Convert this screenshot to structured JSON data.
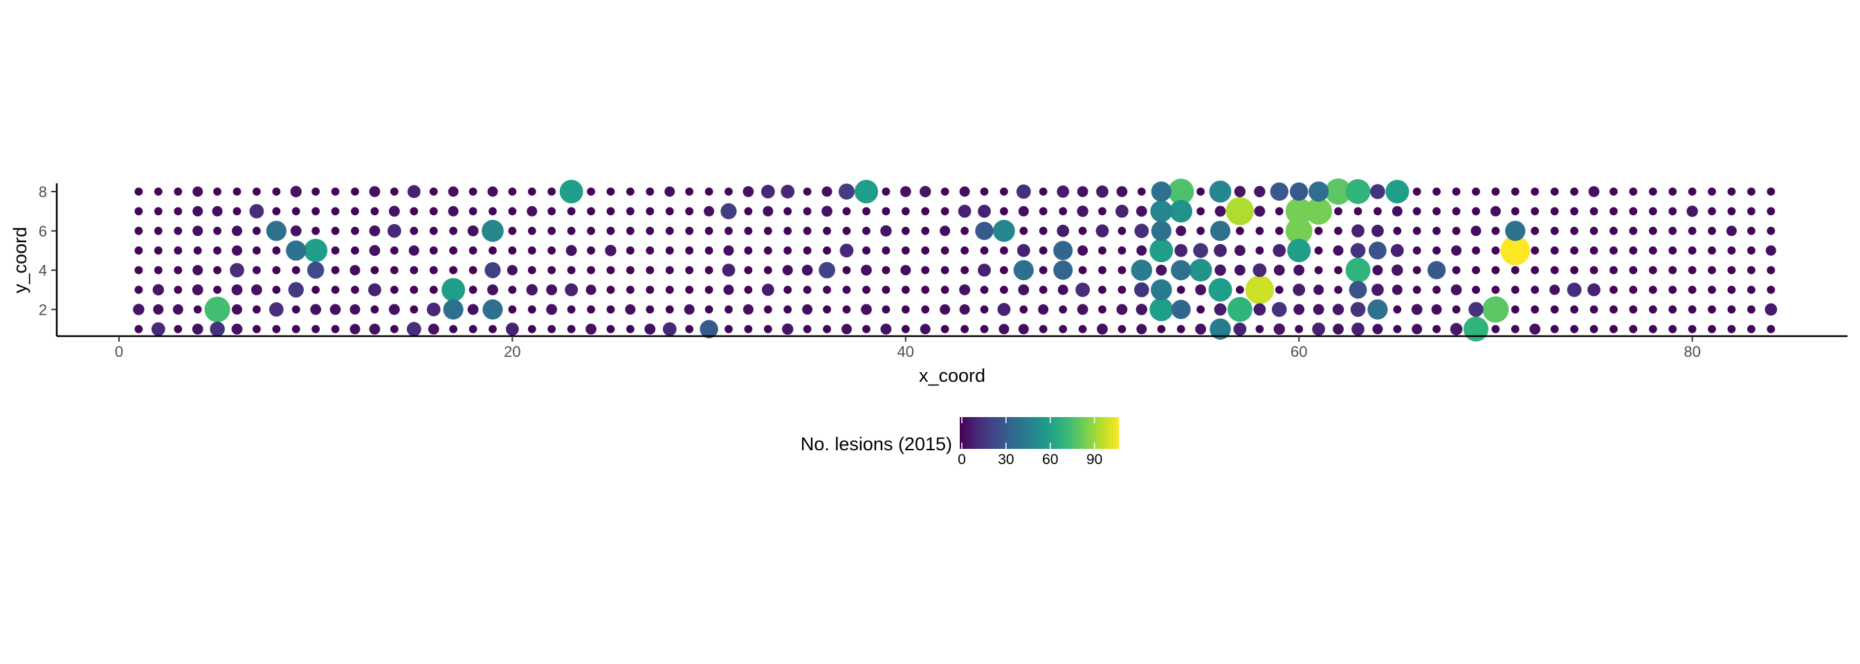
{
  "chart_data": {
    "type": "scatter",
    "title": "",
    "xlabel": "x_coord",
    "ylabel": "y_coord",
    "xlim": [
      -6.5,
      88
    ],
    "ylim": [
      0.7,
      8.3
    ],
    "x_ticks": [
      0,
      20,
      40,
      60,
      80
    ],
    "y_ticks": [
      2,
      4,
      6,
      8
    ],
    "grid": false,
    "color_scale": {
      "title": "No. lesions (2015)",
      "palette": "viridis",
      "domain": [
        0,
        108
      ],
      "ticks": [
        0,
        30,
        60,
        90
      ],
      "position": "bottom",
      "colors": [
        "#440154",
        "#482878",
        "#3e4a89",
        "#31688e",
        "#26828e",
        "#1f9e89",
        "#35b779",
        "#6ece58",
        "#b5de2b",
        "#fde725"
      ]
    },
    "grid_points": {
      "x_range": [
        1,
        84
      ],
      "y_range": [
        1,
        8
      ],
      "default_value": 1
    },
    "points": [
      [
        1,
        2,
        6
      ],
      [
        2,
        1,
        12
      ],
      [
        2,
        2,
        4
      ],
      [
        2,
        3,
        6
      ],
      [
        3,
        2,
        4
      ],
      [
        4,
        1,
        5
      ],
      [
        4,
        3,
        5
      ],
      [
        4,
        8,
        4
      ],
      [
        4,
        7,
        4
      ],
      [
        4,
        4,
        4
      ],
      [
        4,
        6,
        4
      ],
      [
        5,
        1,
        16
      ],
      [
        5,
        2,
        75
      ],
      [
        5,
        7,
        4
      ],
      [
        6,
        4,
        14
      ],
      [
        6,
        1,
        5
      ],
      [
        6,
        3,
        5
      ],
      [
        6,
        2,
        4
      ],
      [
        6,
        6,
        4
      ],
      [
        6,
        5,
        4
      ],
      [
        7,
        7,
        14
      ],
      [
        7,
        3,
        5
      ],
      [
        8,
        2,
        14
      ],
      [
        8,
        6,
        40
      ],
      [
        9,
        3,
        18
      ],
      [
        9,
        8,
        6
      ],
      [
        9,
        5,
        40
      ],
      [
        9,
        6,
        5
      ],
      [
        10,
        4,
        24
      ],
      [
        10,
        5,
        60
      ],
      [
        10,
        2,
        5
      ],
      [
        11,
        2,
        5
      ],
      [
        12,
        1,
        4
      ],
      [
        12,
        2,
        4
      ],
      [
        12,
        4,
        4
      ],
      [
        13,
        8,
        5
      ],
      [
        13,
        6,
        5
      ],
      [
        13,
        3,
        10
      ],
      [
        13,
        5,
        5
      ],
      [
        13,
        1,
        5
      ],
      [
        14,
        7,
        5
      ],
      [
        14,
        6,
        12
      ],
      [
        14,
        2,
        5
      ],
      [
        15,
        8,
        10
      ],
      [
        15,
        1,
        14
      ],
      [
        15,
        5,
        4
      ],
      [
        16,
        2,
        12
      ],
      [
        16,
        1,
        5
      ],
      [
        17,
        2,
        40
      ],
      [
        17,
        3,
        60
      ],
      [
        17,
        8,
        4
      ],
      [
        17,
        7,
        4
      ],
      [
        18,
        2,
        5
      ],
      [
        18,
        6,
        5
      ],
      [
        19,
        6,
        50
      ],
      [
        19,
        3,
        5
      ],
      [
        19,
        8,
        4
      ],
      [
        19,
        4,
        20
      ],
      [
        19,
        2,
        40
      ],
      [
        20,
        1,
        10
      ],
      [
        20,
        4,
        4
      ],
      [
        21,
        3,
        6
      ],
      [
        21,
        7,
        4
      ],
      [
        22,
        2,
        5
      ],
      [
        22,
        3,
        5
      ],
      [
        23,
        8,
        60
      ],
      [
        23,
        3,
        10
      ],
      [
        23,
        5,
        5
      ],
      [
        24,
        1,
        5
      ],
      [
        24,
        3,
        4
      ],
      [
        25,
        5,
        6
      ],
      [
        26,
        2,
        4
      ],
      [
        27,
        1,
        5
      ],
      [
        28,
        1,
        12
      ],
      [
        28,
        8,
        4
      ],
      [
        29,
        2,
        4
      ],
      [
        30,
        1,
        30
      ],
      [
        30,
        7,
        4
      ],
      [
        31,
        7,
        20
      ],
      [
        31,
        4,
        10
      ],
      [
        31,
        3,
        4
      ],
      [
        31,
        5,
        4
      ],
      [
        32,
        8,
        5
      ],
      [
        32,
        2,
        4
      ],
      [
        33,
        8,
        12
      ],
      [
        33,
        3,
        8
      ],
      [
        33,
        7,
        4
      ],
      [
        34,
        8,
        12
      ],
      [
        34,
        1,
        6
      ],
      [
        34,
        4,
        4
      ],
      [
        35,
        4,
        5
      ],
      [
        35,
        2,
        4
      ],
      [
        36,
        4,
        22
      ],
      [
        36,
        7,
        5
      ],
      [
        36,
        8,
        4
      ],
      [
        37,
        8,
        20
      ],
      [
        37,
        5,
        12
      ],
      [
        37,
        1,
        4
      ],
      [
        38,
        8,
        60
      ],
      [
        38,
        4,
        5
      ],
      [
        38,
        2,
        5
      ],
      [
        39,
        1,
        5
      ],
      [
        39,
        6,
        6
      ],
      [
        40,
        8,
        5
      ],
      [
        40,
        4,
        4
      ],
      [
        41,
        8,
        6
      ],
      [
        41,
        1,
        4
      ],
      [
        42,
        2,
        4
      ],
      [
        42,
        6,
        4
      ],
      [
        43,
        7,
        10
      ],
      [
        43,
        3,
        5
      ],
      [
        43,
        8,
        4
      ],
      [
        43,
        2,
        4
      ],
      [
        44,
        7,
        10
      ],
      [
        44,
        6,
        30
      ],
      [
        44,
        4,
        10
      ],
      [
        45,
        2,
        10
      ],
      [
        45,
        6,
        50
      ],
      [
        45,
        1,
        4
      ],
      [
        46,
        8,
        14
      ],
      [
        46,
        5,
        10
      ],
      [
        46,
        4,
        40
      ],
      [
        46,
        3,
        5
      ],
      [
        46,
        1,
        4
      ],
      [
        46,
        7,
        4
      ],
      [
        47,
        2,
        4
      ],
      [
        48,
        5,
        35
      ],
      [
        48,
        8,
        8
      ],
      [
        48,
        4,
        35
      ],
      [
        48,
        6,
        8
      ],
      [
        48,
        3,
        4
      ],
      [
        49,
        8,
        5
      ],
      [
        49,
        7,
        6
      ],
      [
        49,
        3,
        14
      ],
      [
        49,
        2,
        5
      ],
      [
        49,
        5,
        4
      ],
      [
        50,
        8,
        8
      ],
      [
        50,
        6,
        10
      ],
      [
        50,
        1,
        5
      ],
      [
        51,
        7,
        10
      ],
      [
        51,
        8,
        5
      ],
      [
        51,
        2,
        5
      ],
      [
        52,
        4,
        45
      ],
      [
        52,
        3,
        16
      ],
      [
        52,
        6,
        14
      ],
      [
        52,
        7,
        5
      ],
      [
        52,
        2,
        6
      ],
      [
        52,
        5,
        4
      ],
      [
        52,
        1,
        4
      ],
      [
        53,
        8,
        40
      ],
      [
        53,
        7,
        50
      ],
      [
        53,
        5,
        60
      ],
      [
        53,
        6,
        40
      ],
      [
        53,
        3,
        45
      ],
      [
        53,
        2,
        60
      ],
      [
        53,
        4,
        5
      ],
      [
        54,
        8,
        77
      ],
      [
        54,
        7,
        55
      ],
      [
        54,
        4,
        40
      ],
      [
        54,
        2,
        35
      ],
      [
        54,
        5,
        10
      ],
      [
        54,
        6,
        4
      ],
      [
        55,
        4,
        55
      ],
      [
        55,
        5,
        16
      ],
      [
        55,
        3,
        5
      ],
      [
        55,
        1,
        5
      ],
      [
        56,
        6,
        40
      ],
      [
        56,
        8,
        50
      ],
      [
        56,
        1,
        45
      ],
      [
        56,
        5,
        10
      ],
      [
        56,
        3,
        60
      ],
      [
        56,
        2,
        8
      ],
      [
        56,
        4,
        6
      ],
      [
        56,
        7,
        5
      ],
      [
        57,
        7,
        95
      ],
      [
        57,
        2,
        70
      ],
      [
        57,
        8,
        6
      ],
      [
        57,
        1,
        10
      ],
      [
        57,
        4,
        5
      ],
      [
        57,
        5,
        5
      ],
      [
        58,
        3,
        100
      ],
      [
        58,
        4,
        12
      ],
      [
        58,
        8,
        6
      ],
      [
        58,
        2,
        8
      ],
      [
        58,
        7,
        5
      ],
      [
        59,
        8,
        30
      ],
      [
        59,
        2,
        16
      ],
      [
        59,
        5,
        10
      ],
      [
        59,
        1,
        6
      ],
      [
        59,
        4,
        5
      ],
      [
        60,
        7,
        85
      ],
      [
        60,
        6,
        85
      ],
      [
        60,
        5,
        60
      ],
      [
        60,
        8,
        30
      ],
      [
        60,
        2,
        5
      ],
      [
        60,
        3,
        8
      ],
      [
        60,
        4,
        5
      ],
      [
        61,
        7,
        85
      ],
      [
        61,
        8,
        40
      ],
      [
        61,
        1,
        10
      ],
      [
        61,
        2,
        5
      ],
      [
        61,
        3,
        4
      ],
      [
        62,
        8,
        80
      ],
      [
        62,
        2,
        6
      ],
      [
        62,
        1,
        5
      ],
      [
        62,
        5,
        4
      ],
      [
        63,
        8,
        70
      ],
      [
        63,
        4,
        70
      ],
      [
        63,
        3,
        28
      ],
      [
        63,
        2,
        16
      ],
      [
        63,
        5,
        16
      ],
      [
        63,
        6,
        10
      ],
      [
        63,
        1,
        10
      ],
      [
        64,
        8,
        16
      ],
      [
        64,
        2,
        40
      ],
      [
        64,
        5,
        28
      ],
      [
        64,
        6,
        8
      ],
      [
        64,
        3,
        8
      ],
      [
        64,
        4,
        4
      ],
      [
        64,
        1,
        4
      ],
      [
        65,
        8,
        60
      ],
      [
        65,
        5,
        10
      ],
      [
        65,
        4,
        6
      ],
      [
        65,
        7,
        4
      ],
      [
        65,
        3,
        4
      ],
      [
        66,
        2,
        5
      ],
      [
        66,
        1,
        4
      ],
      [
        67,
        4,
        30
      ],
      [
        67,
        2,
        4
      ],
      [
        68,
        1,
        8
      ],
      [
        68,
        3,
        5
      ],
      [
        68,
        5,
        4
      ],
      [
        69,
        2,
        16
      ],
      [
        69,
        1,
        70
      ],
      [
        69,
        6,
        4
      ],
      [
        70,
        2,
        80
      ],
      [
        70,
        7,
        4
      ],
      [
        71,
        5,
        108
      ],
      [
        71,
        6,
        40
      ],
      [
        72,
        1,
        5
      ],
      [
        73,
        3,
        4
      ],
      [
        74,
        3,
        14
      ],
      [
        75,
        3,
        10
      ],
      [
        75,
        8,
        5
      ],
      [
        80,
        7,
        6
      ],
      [
        82,
        6,
        4
      ],
      [
        84,
        2,
        8
      ],
      [
        84,
        5,
        4
      ]
    ]
  }
}
